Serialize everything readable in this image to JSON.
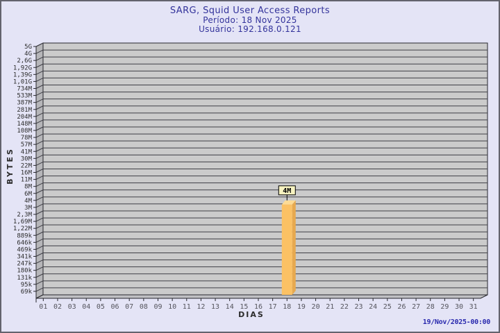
{
  "footer": {
    "generated": "19/Nov/2025-00:00"
  },
  "chart_data": {
    "type": "bar",
    "title": "SARG, Squid User Access Reports",
    "subtitles": [
      "Período: 18 Nov 2025",
      "Usuário: 192.168.0.121"
    ],
    "xlabel": "DIAS",
    "ylabel": "BYTES",
    "x_tick_labels": [
      "01",
      "02",
      "03",
      "04",
      "05",
      "06",
      "07",
      "08",
      "09",
      "10",
      "11",
      "12",
      "13",
      "14",
      "15",
      "16",
      "17",
      "18",
      "19",
      "20",
      "21",
      "22",
      "23",
      "24",
      "25",
      "26",
      "27",
      "28",
      "29",
      "30",
      "31"
    ],
    "y_tick_labels": [
      "5G",
      "4G",
      "2,6G",
      "1,92G",
      "1,39G",
      "1,01G",
      "734M",
      "533M",
      "387M",
      "281M",
      "204M",
      "148M",
      "108M",
      "78M",
      "57M",
      "41M",
      "30M",
      "22M",
      "16M",
      "11M",
      "8M",
      "6M",
      "4M",
      "3M",
      "2,3M",
      "1,69M",
      "1,22M",
      "889k",
      "646k",
      "469k",
      "341k",
      "247k",
      "180k",
      "131k",
      "95k",
      "69k"
    ],
    "y_scale_note": "non-linear byte scale, gridline per tick label",
    "bars": [
      {
        "day": "18",
        "label": "4M",
        "top_tick": "4M"
      }
    ],
    "legend": null,
    "grid": "horizontal",
    "colors": {
      "background": "#E4E4F6",
      "plot_face": "#CBCBCB",
      "left_wall": "#B6B6B9",
      "floor": "#C0C0C3",
      "grid_line": "#3F3F46",
      "frame": "#26262C",
      "tick": "#26262C",
      "bar_front": "#FBC164",
      "bar_top": "#FDDB94",
      "bar_side": "#E7A94F",
      "annotation_bg": "#F7F3C1",
      "title_text": "#33339B",
      "footer_text": "#2929AE",
      "y_label_text": "#2B2B2B",
      "x_label_text": "#54545C"
    }
  }
}
